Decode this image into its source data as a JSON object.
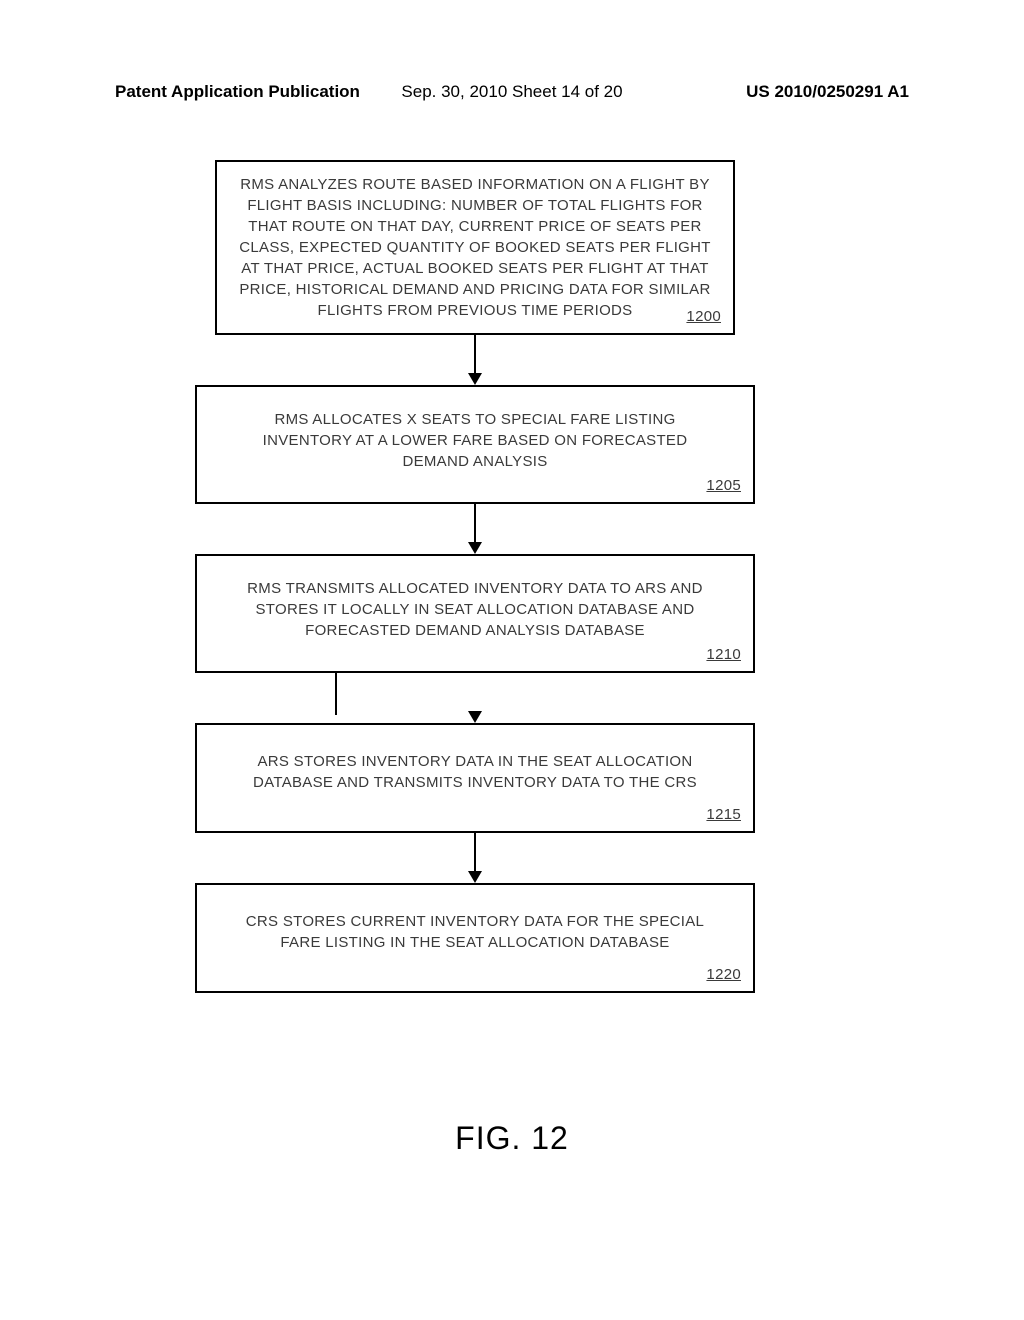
{
  "header": {
    "left": "Patent Application Publication",
    "center": "Sep. 30, 2010  Sheet 14 of 20",
    "right": "US 2010/0250291 A1"
  },
  "flowchart": {
    "type": "flowchart",
    "background_color": "#ffffff",
    "border_color": "#000000",
    "text_color": "#3a3a3a",
    "font_size": 15,
    "box_border_width": 2,
    "arrow_color": "#000000",
    "nodes": [
      {
        "id": "1200",
        "text": "RMS ANALYZES ROUTE BASED INFORMATION ON A FLIGHT BY FLIGHT BASIS INCLUDING: NUMBER OF TOTAL FLIGHTS FOR THAT ROUTE ON THAT DAY, CURRENT PRICE OF SEATS PER CLASS, EXPECTED QUANTITY OF BOOKED SEATS PER FLIGHT AT THAT PRICE, ACTUAL BOOKED SEATS PER FLIGHT AT THAT PRICE, HISTORICAL DEMAND AND PRICING DATA FOR SIMILAR FLIGHTS FROM PREVIOUS TIME PERIODS",
        "number": "1200"
      },
      {
        "id": "1205",
        "text": "RMS ALLOCATES X SEATS TO SPECIAL FARE LISTING INVENTORY AT A LOWER FARE BASED ON FORECASTED DEMAND ANALYSIS",
        "number": "1205"
      },
      {
        "id": "1210",
        "text": "RMS TRANSMITS ALLOCATED INVENTORY DATA TO ARS AND STORES IT LOCALLY IN SEAT ALLOCATION DATABASE AND FORECASTED DEMAND ANALYSIS DATABASE",
        "number": "1210"
      },
      {
        "id": "1215",
        "text": "ARS STORES INVENTORY DATA IN THE SEAT ALLOCATION DATABASE AND TRANSMITS INVENTORY DATA TO THE CRS",
        "number": "1215"
      },
      {
        "id": "1220",
        "text": "CRS STORES CURRENT INVENTORY DATA FOR THE SPECIAL FARE LISTING IN THE SEAT ALLOCATION DATABASE",
        "number": "1220"
      }
    ]
  },
  "figure_label": "FIG. 12"
}
